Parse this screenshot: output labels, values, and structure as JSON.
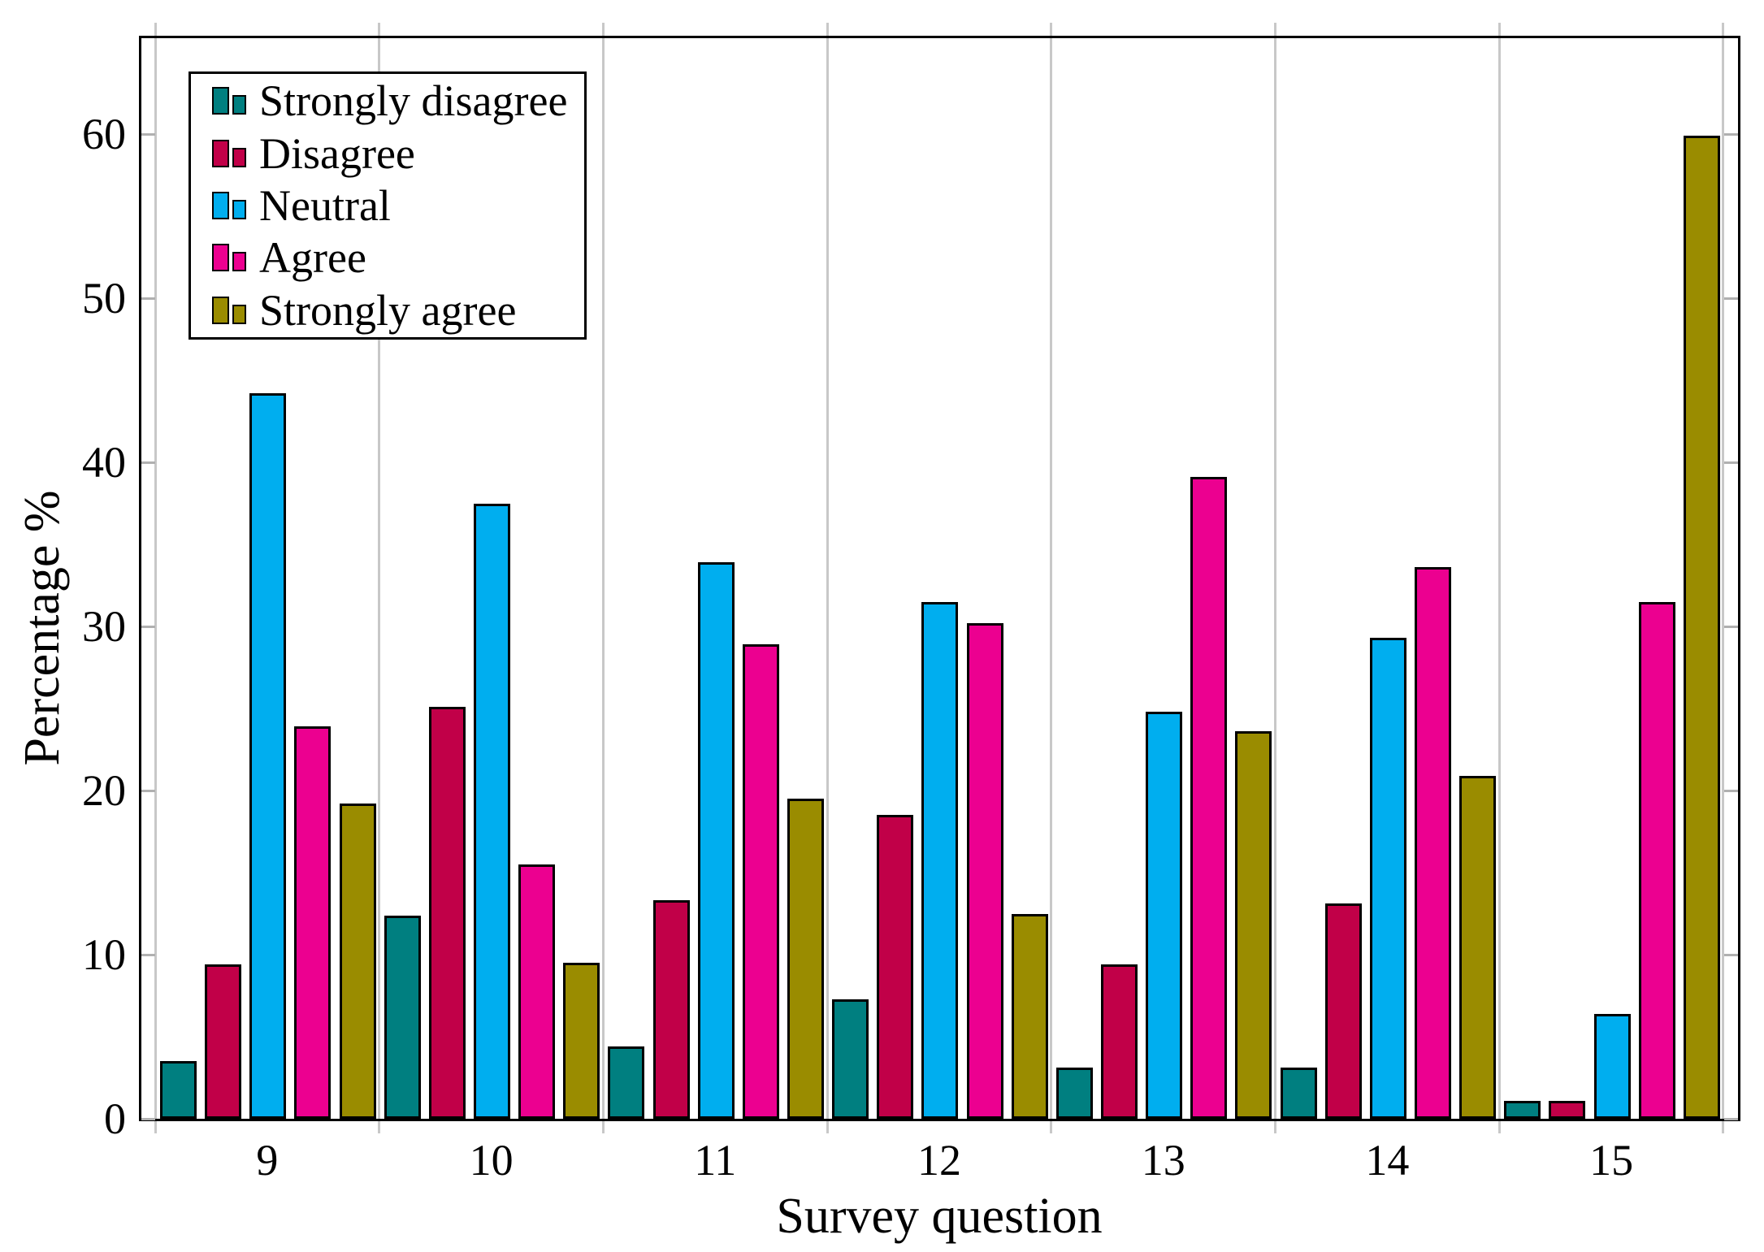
{
  "chart_data": {
    "type": "bar",
    "title": "",
    "xlabel": "Survey question",
    "ylabel": "Percentage %",
    "categories": [
      "9",
      "10",
      "11",
      "12",
      "13",
      "14",
      "15"
    ],
    "series": [
      {
        "name": "Strongly disagree",
        "color": "#007f80",
        "values": [
          3.5,
          12.4,
          4.4,
          7.3,
          3.1,
          3.1,
          1.1
        ]
      },
      {
        "name": "Disagree",
        "color": "#c10048",
        "values": [
          9.4,
          25.1,
          13.3,
          18.5,
          9.4,
          13.1,
          1.1
        ]
      },
      {
        "name": "Neutral",
        "color": "#00aeef",
        "values": [
          44.2,
          37.5,
          33.9,
          31.5,
          24.8,
          29.3,
          6.4
        ]
      },
      {
        "name": "Agree",
        "color": "#ec0090",
        "values": [
          23.9,
          15.5,
          28.9,
          30.2,
          39.1,
          33.6,
          31.5
        ]
      },
      {
        "name": "Strongly agree",
        "color": "#9a8c00",
        "values": [
          19.2,
          9.5,
          19.5,
          12.5,
          23.6,
          20.9,
          59.9
        ]
      }
    ],
    "yticks": [
      "0",
      "10",
      "20",
      "30",
      "40",
      "50",
      "60"
    ],
    "ylim": [
      0,
      66
    ],
    "grid": "vertical-group-separators",
    "gridline_color": "#c8c8c8",
    "tick_color": "#b0b0b0",
    "legend_position": "top-left"
  }
}
